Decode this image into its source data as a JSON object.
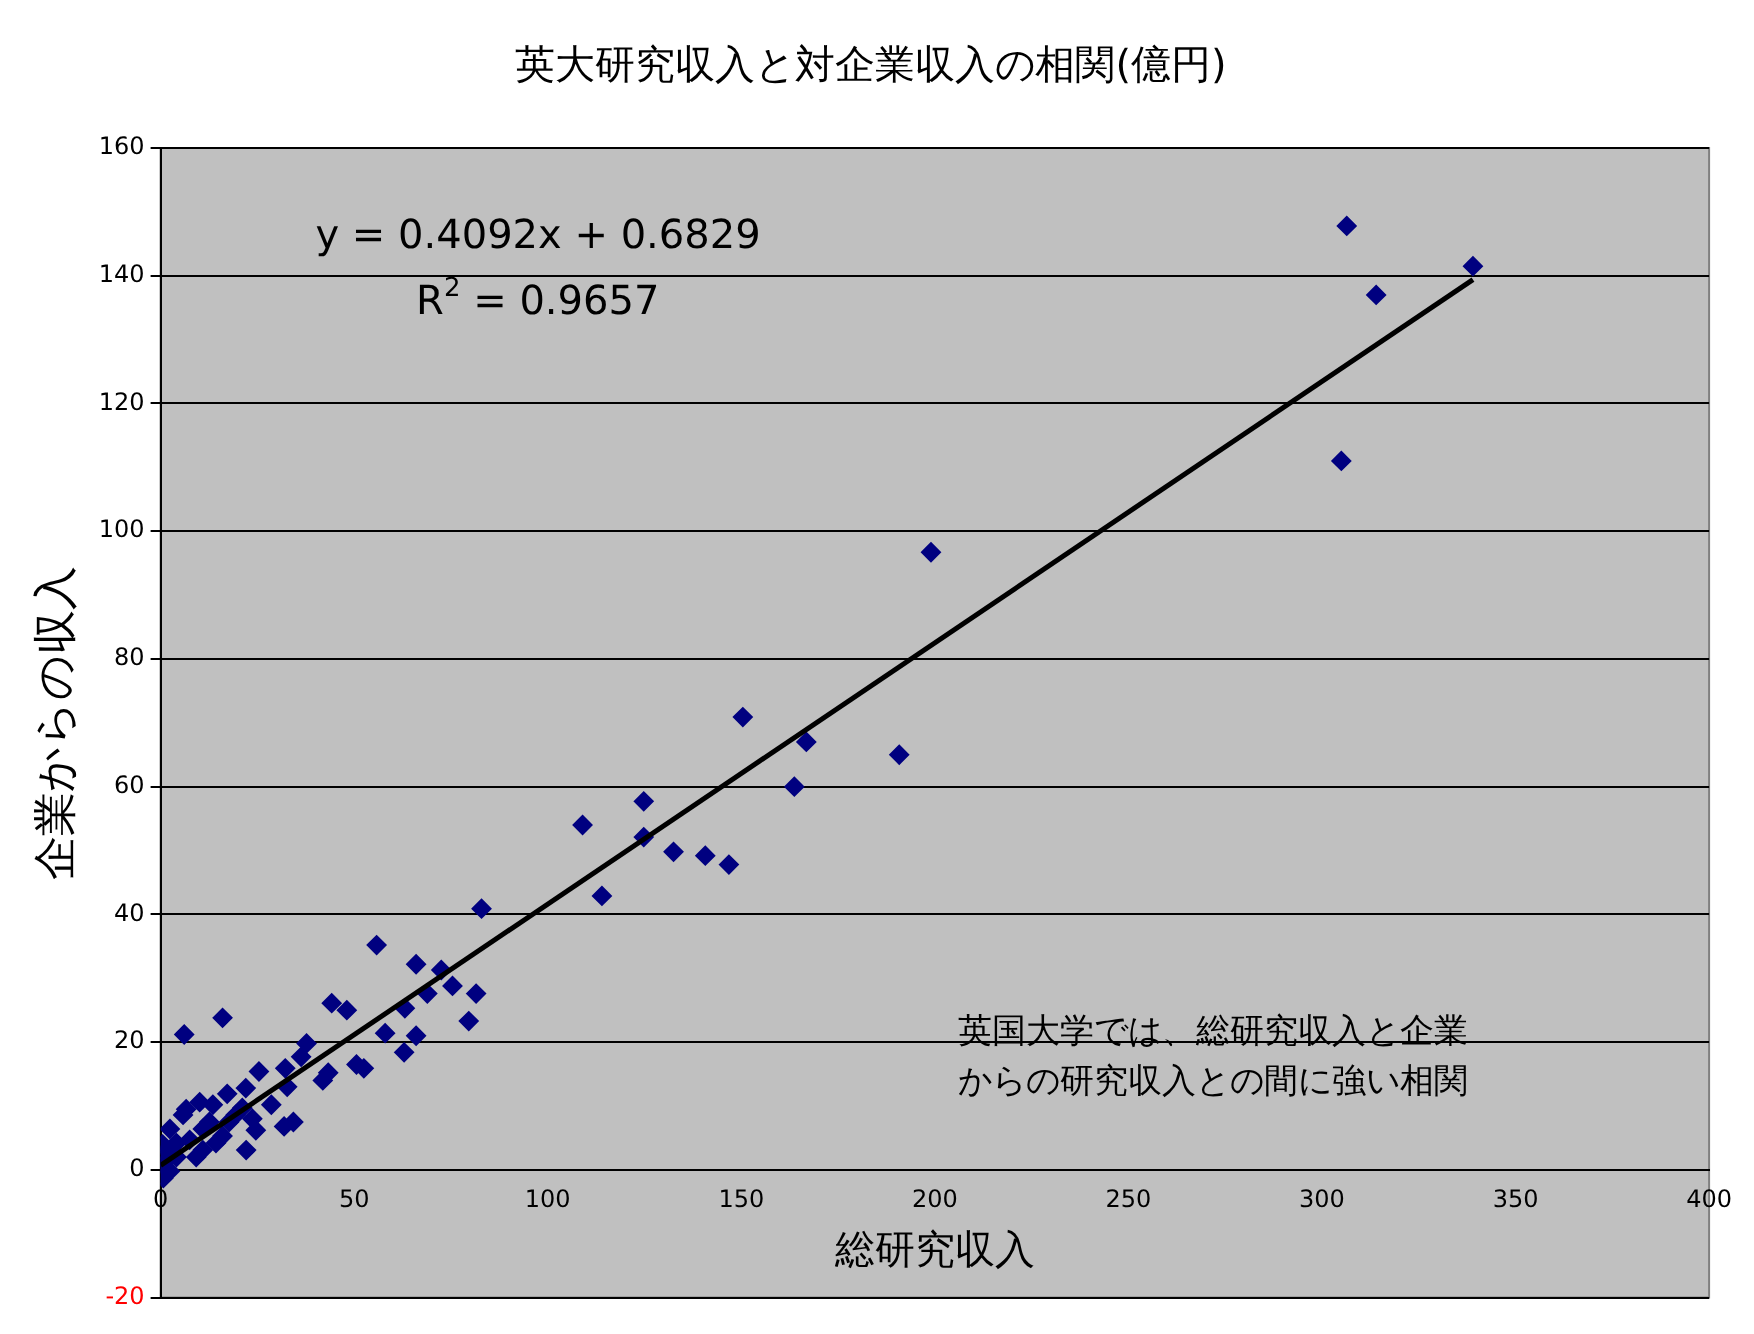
{
  "chart_data": {
    "type": "scatter",
    "title": "英大研究収入と対企業収入の相関(億円)",
    "xlabel": "総研究収入",
    "ylabel": "企業からの収入",
    "xlim": [
      0,
      400
    ],
    "xticks": [
      0,
      50,
      100,
      150,
      200,
      250,
      300,
      350,
      400
    ],
    "ylim": [
      -20,
      160
    ],
    "yticks": [
      -20,
      0,
      20,
      40,
      60,
      80,
      100,
      120,
      140,
      160
    ],
    "grid": "y",
    "legend": false,
    "marker": "diamond",
    "annotations": [
      "y = 0.4092x + 0.6829",
      "R$^{2}$ = 0.9657",
      "英国大学では、総研究収入と企業",
      "からの研究収入との間に強い相関"
    ],
    "series": [
      {
        "color": "#000080",
        "x": [
          306.4,
          314,
          339,
          305,
          199,
          150.4,
          166.8,
          163.7,
          190.8,
          124.8,
          109,
          124.8,
          132.5,
          140.7,
          146.8,
          114,
          82.9,
          55.8,
          66,
          72.5,
          75.4,
          81.5,
          68.9,
          44.2,
          48.1,
          63.1,
          79.6,
          16,
          6.1,
          58,
          66,
          62.9,
          37.7,
          36.3,
          32.2,
          25.4,
          43.3,
          41.9,
          50.6,
          52.5,
          32.7,
          22,
          17.2,
          28.6,
          10.1,
          6.6,
          34.3,
          31.9,
          24.6,
          22.1,
          16,
          19.4,
          12.6,
          10.9,
          4.1,
          0.7,
          0.7,
          2.4,
          0.5,
          7.5,
          14.3,
          17.7,
          4.1,
          9.2,
          5.8,
          21.1,
          23.7,
          0.3,
          2.4,
          1.5,
          10.9,
          13.5
        ],
        "values": [
          147.8,
          137,
          141.5,
          111,
          96.7,
          70.9,
          67,
          60,
          65,
          57.7,
          54,
          52.1,
          49.8,
          49.2,
          47.8,
          42.9,
          40.9,
          35.2,
          32.2,
          31.3,
          28.8,
          27.6,
          27.6,
          26.1,
          25,
          25.3,
          23.3,
          23.8,
          21.2,
          21.4,
          21,
          18.4,
          19.8,
          17.7,
          15.9,
          15.4,
          15.2,
          14,
          16.5,
          15.9,
          13,
          12.8,
          11.9,
          10.2,
          10.6,
          9.5,
          7.5,
          6.8,
          6.2,
          3.1,
          5.3,
          8.6,
          7.5,
          3.1,
          4.2,
          0.9,
          -1.3,
          6.4,
          4,
          4.7,
          4.2,
          7.5,
          2,
          2,
          8.6,
          9.7,
          8,
          2,
          -0.2,
          3.1,
          6.4,
          10.2
        ]
      },
      {
        "type": "line",
        "color": "#000000",
        "marker": "none",
        "line_style": "solid",
        "x": [
          0,
          339
        ],
        "values": [
          0.7,
          139.4
        ]
      }
    ]
  }
}
